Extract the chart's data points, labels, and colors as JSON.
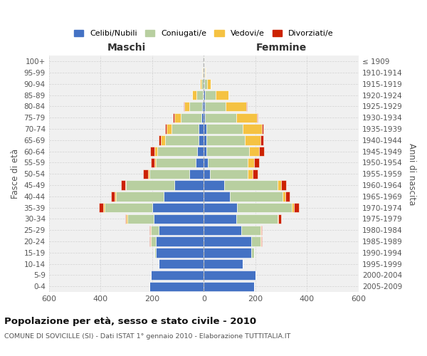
{
  "age_groups": [
    "0-4",
    "5-9",
    "10-14",
    "15-19",
    "20-24",
    "25-29",
    "30-34",
    "35-39",
    "40-44",
    "45-49",
    "50-54",
    "55-59",
    "60-64",
    "65-69",
    "70-74",
    "75-79",
    "80-84",
    "85-89",
    "90-94",
    "95-99",
    "100+"
  ],
  "birth_years": [
    "2005-2009",
    "2000-2004",
    "1995-1999",
    "1990-1994",
    "1985-1989",
    "1980-1984",
    "1975-1979",
    "1970-1974",
    "1965-1969",
    "1960-1964",
    "1955-1959",
    "1950-1954",
    "1945-1949",
    "1940-1944",
    "1935-1939",
    "1930-1934",
    "1925-1929",
    "1920-1924",
    "1915-1919",
    "1910-1914",
    "≤ 1909"
  ],
  "colors": {
    "celibe": "#4472c4",
    "coniugato": "#b8cfa0",
    "vedovo": "#f5c242",
    "divorziato": "#cc2200"
  },
  "maschi": {
    "celibe": [
      210,
      205,
      175,
      185,
      185,
      175,
      195,
      200,
      155,
      115,
      55,
      30,
      25,
      20,
      20,
      10,
      5,
      4,
      2,
      1,
      0
    ],
    "coniugato": [
      0,
      0,
      0,
      5,
      20,
      30,
      100,
      185,
      185,
      185,
      155,
      155,
      155,
      130,
      105,
      80,
      50,
      25,
      8,
      3,
      1
    ],
    "vedovo": [
      0,
      0,
      0,
      0,
      2,
      2,
      5,
      5,
      5,
      5,
      5,
      5,
      10,
      15,
      20,
      25,
      20,
      15,
      5,
      2,
      0
    ],
    "divorziato": [
      0,
      0,
      0,
      0,
      2,
      2,
      5,
      15,
      15,
      15,
      20,
      15,
      18,
      10,
      5,
      5,
      3,
      0,
      0,
      0,
      0
    ]
  },
  "femmine": {
    "nubile": [
      195,
      200,
      150,
      185,
      185,
      145,
      125,
      130,
      100,
      80,
      25,
      15,
      10,
      10,
      10,
      5,
      5,
      5,
      2,
      1,
      0
    ],
    "coniugata": [
      0,
      0,
      0,
      10,
      35,
      75,
      160,
      210,
      205,
      205,
      145,
      155,
      165,
      150,
      140,
      120,
      80,
      40,
      10,
      3,
      1
    ],
    "vedova": [
      0,
      0,
      0,
      0,
      2,
      2,
      5,
      10,
      10,
      15,
      20,
      25,
      40,
      60,
      75,
      80,
      80,
      50,
      15,
      3,
      0
    ],
    "divorziata": [
      0,
      0,
      0,
      0,
      2,
      3,
      10,
      18,
      18,
      20,
      20,
      18,
      18,
      10,
      5,
      5,
      2,
      0,
      0,
      0,
      0
    ]
  },
  "title": "Popolazione per età, sesso e stato civile - 2010",
  "subtitle": "COMUNE DI SOVICILLE (SI) - Dati ISTAT 1° gennaio 2010 - Elaborazione TUTTITALIA.IT",
  "xlabel_left": "Maschi",
  "xlabel_right": "Femmine",
  "ylabel_left": "Fasce di età",
  "ylabel_right": "Anni di nascita",
  "xlim": 600,
  "legend_labels": [
    "Celibi/Nubili",
    "Coniugati/e",
    "Vedovi/e",
    "Divorziati/e"
  ],
  "bg_color": "#ffffff",
  "plot_bg_color": "#f0f0f0"
}
